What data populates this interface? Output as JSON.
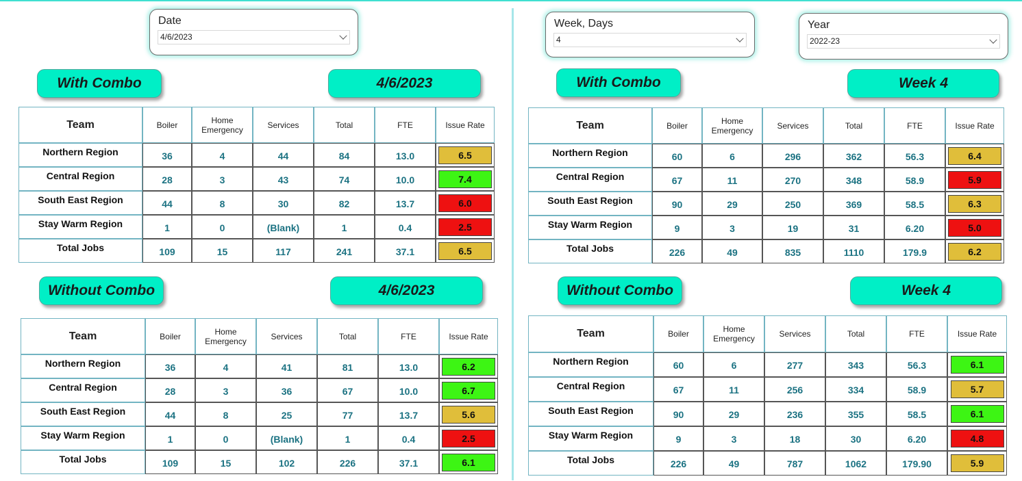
{
  "colors": {
    "accent": "#00efc6",
    "yellow": "#e0be3a",
    "green": "#3df514",
    "red": "#ee1111",
    "value_text": "#1b7282"
  },
  "slicers": {
    "date": {
      "title": "Date",
      "value": "4/6/2023"
    },
    "week": {
      "title": "Week, Days",
      "value": "4"
    },
    "year": {
      "title": "Year",
      "value": "2022-23"
    }
  },
  "columns": [
    "Team",
    "Boiler",
    "Home Emergency",
    "Services",
    "Total",
    "FTE",
    "Issue Rate"
  ],
  "panels": [
    {
      "combo_label": "With Combo",
      "period_label": "4/6/2023",
      "rows": [
        {
          "team": "Northern Region",
          "values": [
            "36",
            "4",
            "44",
            "84",
            "13.0"
          ],
          "rate": "6.5",
          "color": "yellow"
        },
        {
          "team": "Central Region",
          "values": [
            "28",
            "3",
            "43",
            "74",
            "10.0"
          ],
          "rate": "7.4",
          "color": "green"
        },
        {
          "team": "South East Region",
          "values": [
            "44",
            "8",
            "30",
            "82",
            "13.7"
          ],
          "rate": "6.0",
          "color": "red"
        },
        {
          "team": "Stay Warm Region",
          "values": [
            "1",
            "0",
            "(Blank)",
            "1",
            "0.4"
          ],
          "rate": "2.5",
          "color": "red"
        },
        {
          "team": "Total Jobs",
          "values": [
            "109",
            "15",
            "117",
            "241",
            "37.1"
          ],
          "rate": "6.5",
          "color": "yellow"
        }
      ]
    },
    {
      "combo_label": "Without Combo",
      "period_label": "4/6/2023",
      "rows": [
        {
          "team": "Northern Region",
          "values": [
            "36",
            "4",
            "41",
            "81",
            "13.0"
          ],
          "rate": "6.2",
          "color": "green"
        },
        {
          "team": "Central Region",
          "values": [
            "28",
            "3",
            "36",
            "67",
            "10.0"
          ],
          "rate": "6.7",
          "color": "green"
        },
        {
          "team": "South East Region",
          "values": [
            "44",
            "8",
            "25",
            "77",
            "13.7"
          ],
          "rate": "5.6",
          "color": "yellow"
        },
        {
          "team": "Stay Warm Region",
          "values": [
            "1",
            "0",
            "(Blank)",
            "1",
            "0.4"
          ],
          "rate": "2.5",
          "color": "red"
        },
        {
          "team": "Total Jobs",
          "values": [
            "109",
            "15",
            "102",
            "226",
            "37.1"
          ],
          "rate": "6.1",
          "color": "green"
        }
      ]
    },
    {
      "combo_label": "With Combo",
      "period_label": "Week 4",
      "rows": [
        {
          "team": "Northern Region",
          "values": [
            "60",
            "6",
            "296",
            "362",
            "56.3"
          ],
          "rate": "6.4",
          "color": "yellow"
        },
        {
          "team": "Central Region",
          "values": [
            "67",
            "11",
            "270",
            "348",
            "58.9"
          ],
          "rate": "5.9",
          "color": "red"
        },
        {
          "team": "South East Region",
          "values": [
            "90",
            "29",
            "250",
            "369",
            "58.5"
          ],
          "rate": "6.3",
          "color": "yellow"
        },
        {
          "team": "Stay Warm Region",
          "values": [
            "9",
            "3",
            "19",
            "31",
            "6.20"
          ],
          "rate": "5.0",
          "color": "red"
        },
        {
          "team": "Total Jobs",
          "values": [
            "226",
            "49",
            "835",
            "1110",
            "179.9"
          ],
          "rate": "6.2",
          "color": "yellow"
        }
      ]
    },
    {
      "combo_label": "Without Combo",
      "period_label": "Week 4",
      "rows": [
        {
          "team": "Northern Region",
          "values": [
            "60",
            "6",
            "277",
            "343",
            "56.3"
          ],
          "rate": "6.1",
          "color": "green"
        },
        {
          "team": "Central Region",
          "values": [
            "67",
            "11",
            "256",
            "334",
            "58.9"
          ],
          "rate": "5.7",
          "color": "yellow"
        },
        {
          "team": "South East Region",
          "values": [
            "90",
            "29",
            "236",
            "355",
            "58.5"
          ],
          "rate": "6.1",
          "color": "green"
        },
        {
          "team": "Stay Warm Region",
          "values": [
            "9",
            "3",
            "18",
            "30",
            "6.20"
          ],
          "rate": "4.8",
          "color": "red"
        },
        {
          "team": "Total Jobs",
          "values": [
            "226",
            "49",
            "787",
            "1062",
            "179.90"
          ],
          "rate": "5.9",
          "color": "yellow"
        }
      ]
    }
  ]
}
